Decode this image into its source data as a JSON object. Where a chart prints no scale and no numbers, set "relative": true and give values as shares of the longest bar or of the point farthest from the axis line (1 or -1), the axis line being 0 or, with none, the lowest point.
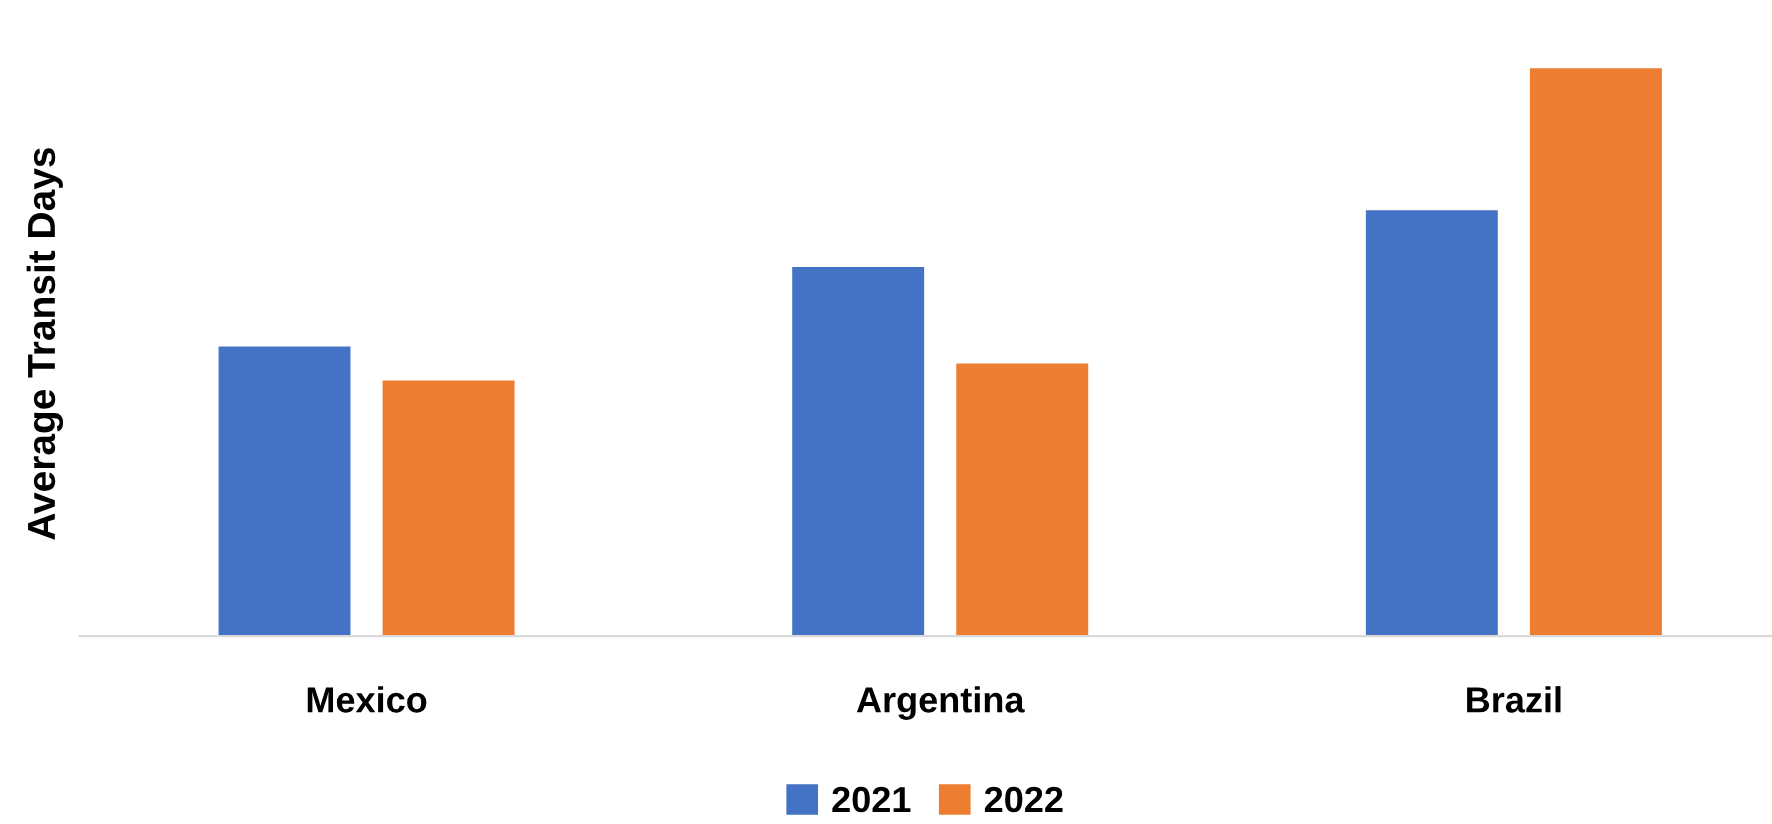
{
  "chart_data": {
    "type": "bar",
    "relative": true,
    "ylabel": "Average Transit Days",
    "categories": [
      "Mexico",
      "Argentina",
      "Brazil"
    ],
    "series": [
      {
        "name": "2021",
        "color": "#4472c4",
        "values": [
          0.51,
          0.65,
          0.75
        ]
      },
      {
        "name": "2022",
        "color": "#ed7d31",
        "values": [
          0.45,
          0.48,
          1
        ]
      }
    ],
    "legend": "bottom",
    "grid": false
  }
}
